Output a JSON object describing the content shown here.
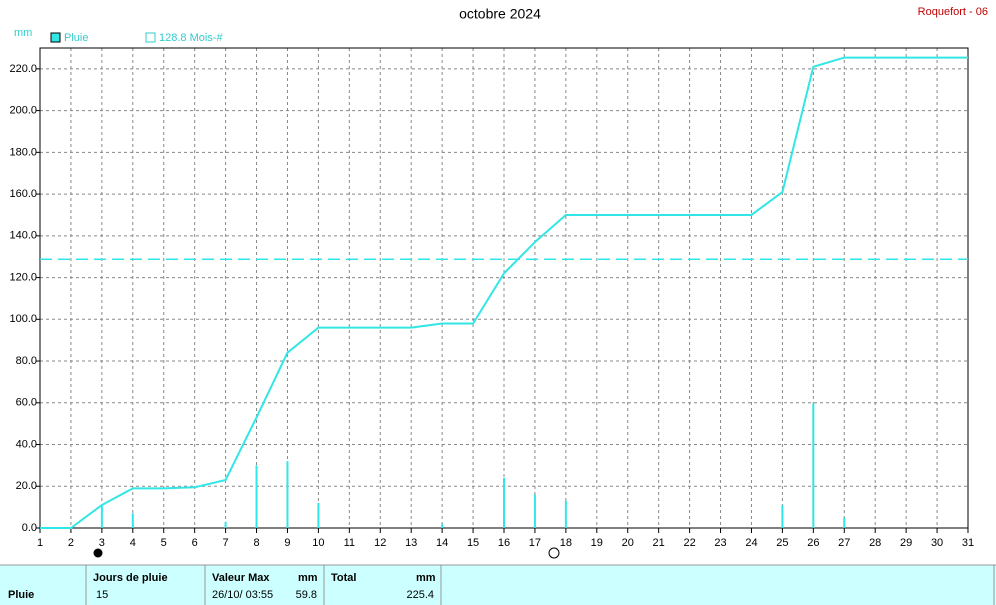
{
  "chart_data": {
    "type": "bar",
    "title": "octobre 2024",
    "station": "Roquefort - 06",
    "y_label": "mm",
    "x": [
      1,
      2,
      3,
      4,
      5,
      6,
      7,
      8,
      9,
      10,
      11,
      12,
      13,
      14,
      15,
      16,
      17,
      18,
      19,
      20,
      21,
      22,
      23,
      24,
      25,
      26,
      27,
      28,
      29,
      30,
      31
    ],
    "xlim": [
      1,
      31
    ],
    "xticks": [
      1,
      2,
      3,
      4,
      5,
      6,
      7,
      8,
      9,
      10,
      11,
      12,
      13,
      14,
      15,
      16,
      17,
      18,
      19,
      20,
      21,
      22,
      23,
      24,
      25,
      26,
      27,
      28,
      29,
      30,
      31
    ],
    "ylim": [
      0,
      230
    ],
    "yticks": [
      {
        "value": 0,
        "label": "0.0"
      },
      {
        "value": 20,
        "label": "20.0"
      },
      {
        "value": 40,
        "label": "40.0"
      },
      {
        "value": 60,
        "label": "60.0"
      },
      {
        "value": 80,
        "label": "80.0"
      },
      {
        "value": 100,
        "label": "100.0"
      },
      {
        "value": 120,
        "label": "120.0"
      },
      {
        "value": 140,
        "label": "140.0"
      },
      {
        "value": 160,
        "label": "160.0"
      },
      {
        "value": 180,
        "label": "180.0"
      },
      {
        "value": 200,
        "label": "200.0"
      },
      {
        "value": 220,
        "label": "220.0"
      }
    ],
    "grid": true,
    "series": [
      {
        "name": "Pluie",
        "color": "#33e6e6",
        "values": [
          0,
          0,
          11,
          7,
          0,
          0,
          3,
          30,
          32,
          12,
          0,
          0,
          0,
          2,
          0,
          24,
          16,
          13,
          0,
          0,
          0,
          0,
          0,
          0,
          11,
          59.8,
          5,
          0,
          0,
          0,
          0
        ]
      }
    ],
    "cumulative": {
      "color": "#33e6e6",
      "values": [
        0,
        0,
        11,
        19,
        19,
        19.5,
        23,
        53,
        84,
        96,
        96,
        96,
        96,
        98,
        98,
        122,
        137,
        150,
        150,
        150,
        150,
        150,
        150,
        150,
        161,
        221,
        225.4,
        225.4,
        225.4,
        225.4,
        225.4
      ]
    },
    "reference": {
      "value": 128.8,
      "label": "128.8 Mois-#",
      "color": "#33e6e6"
    }
  },
  "table": {
    "row_label": "Pluie",
    "days_header": "Jours de pluie",
    "days": "15",
    "max_header": "Valeur Max",
    "max_unit": "mm",
    "max_date": "26/10/  03:55",
    "max_value": "59.8",
    "total_header": "Total",
    "total_unit": "mm",
    "total_value": "225.4"
  }
}
